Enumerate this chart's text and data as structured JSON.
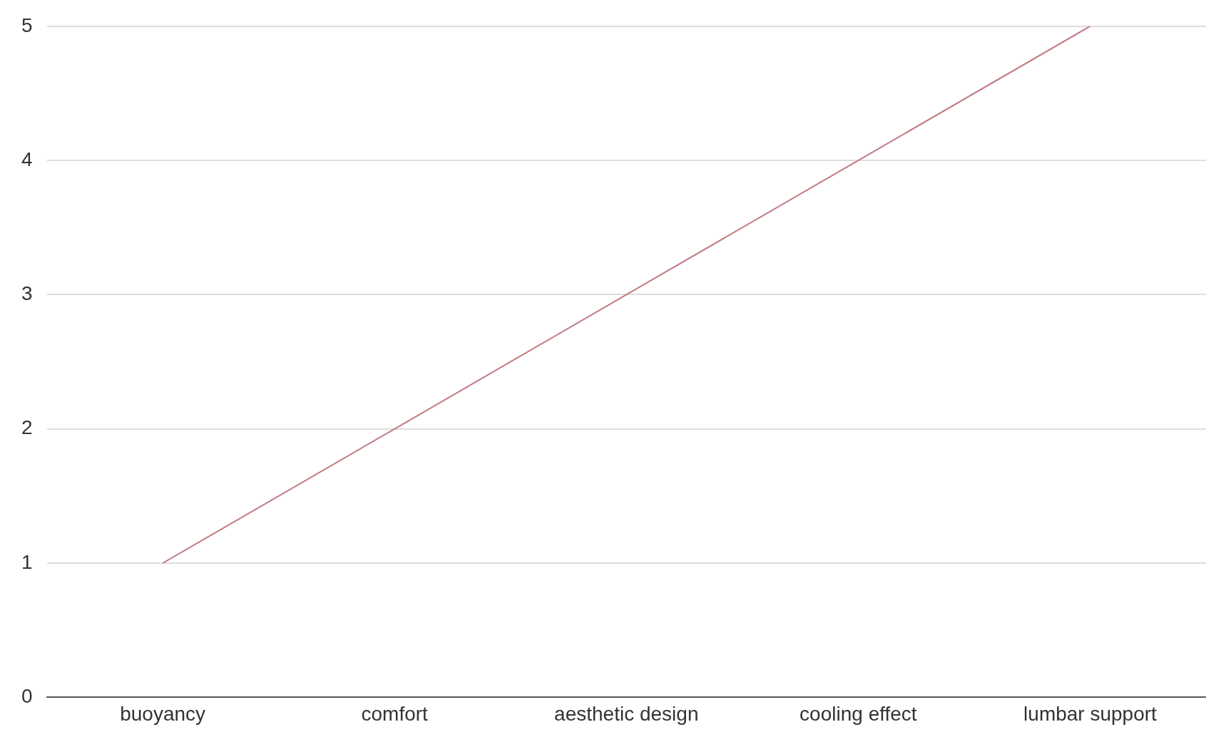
{
  "chart_data": {
    "type": "line",
    "categories": [
      "buoyancy",
      "comfort",
      "aesthetic design",
      "cooling effect",
      "lumbar support"
    ],
    "series": [
      {
        "color": "#c47a82",
        "values": [
          1,
          2,
          3,
          4,
          5
        ]
      }
    ],
    "ylim": [
      0,
      5
    ],
    "yticks": [
      0,
      1,
      2,
      3,
      4,
      5
    ],
    "grid": "y",
    "marker": "none",
    "line_style": "solid",
    "legend": false
  }
}
